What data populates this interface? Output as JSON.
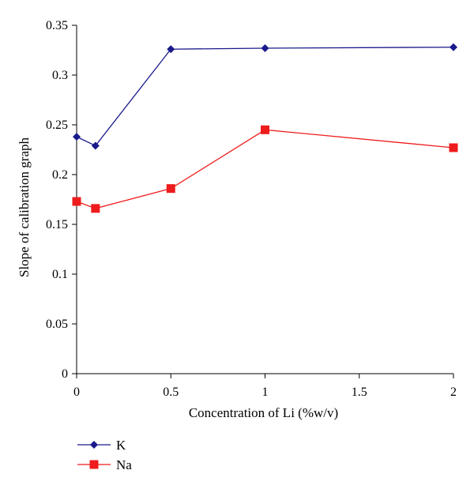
{
  "chart_data": {
    "type": "line",
    "title": "",
    "xlabel": "Concentration of Li (%w/v)",
    "ylabel": "Slope of calibration graph",
    "xlim": [
      0,
      2
    ],
    "ylim": [
      0,
      0.35
    ],
    "x_ticks": [
      0,
      0.5,
      1,
      1.5,
      2
    ],
    "x_tick_labels": [
      "0",
      "0.5",
      "1",
      "1.5",
      "2"
    ],
    "y_ticks": [
      0,
      0.05,
      0.1,
      0.15,
      0.2,
      0.25,
      0.3,
      0.35
    ],
    "y_tick_labels": [
      "0",
      "0.05",
      "0.1",
      "0.15",
      "0.2",
      "0.25",
      "0.3",
      "0.35"
    ],
    "grid": false,
    "legend_position": "bottom-left",
    "series": [
      {
        "name": "K",
        "color": "#1a1a8c",
        "marker": "diamond",
        "x": [
          0,
          0.1,
          0.5,
          1,
          2
        ],
        "values": [
          0.238,
          0.229,
          0.326,
          0.327,
          0.328
        ]
      },
      {
        "name": "Na",
        "color": "#ee1c1c",
        "marker": "square",
        "x": [
          0,
          0.1,
          0.5,
          1,
          2
        ],
        "values": [
          0.173,
          0.166,
          0.186,
          0.245,
          0.227
        ]
      }
    ]
  }
}
